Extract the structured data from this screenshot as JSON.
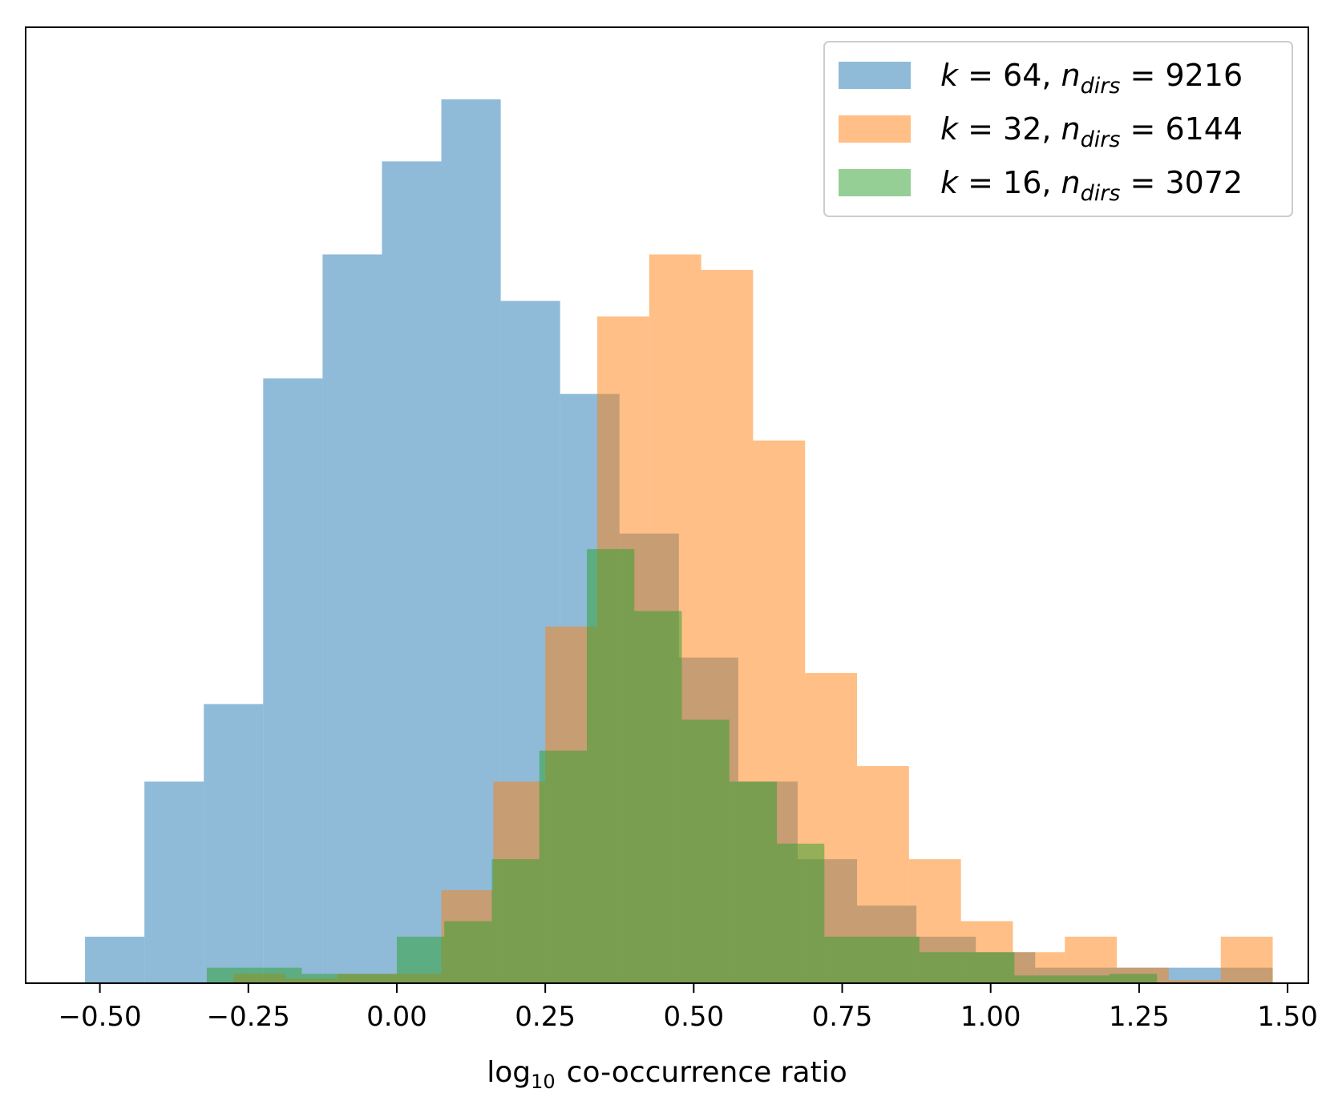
{
  "chart_data": {
    "type": "bar",
    "subtype": "overlaid-histogram",
    "xlabel_prefix": "log",
    "xlabel_sub": "10",
    "xlabel_suffix": "co-occurrence ratio",
    "xlim": [
      -0.625,
      1.535
    ],
    "ylim": [
      0,
      57
    ],
    "xticks": [
      -0.5,
      -0.25,
      0.0,
      0.25,
      0.5,
      0.75,
      1.0,
      1.25,
      1.5
    ],
    "xtick_labels": [
      "−0.50",
      "−0.25",
      "0.00",
      "0.25",
      "0.50",
      "0.75",
      "1.00",
      "1.25",
      "1.50"
    ],
    "y_tick_labels_shown": false,
    "grid": false,
    "legend_position": "top-right",
    "series": [
      {
        "k": "64",
        "n_dirs": "9216",
        "color": "#1f77b4",
        "alpha": 0.5,
        "edges": [
          -0.525,
          -0.425,
          -0.325,
          -0.225,
          -0.125,
          -0.025,
          0.075,
          0.175,
          0.275,
          0.375,
          0.475,
          0.575,
          0.675,
          0.775,
          0.875,
          0.975,
          1.075,
          1.175,
          1.275,
          1.375,
          1.475
        ],
        "counts": [
          3,
          13,
          18,
          39,
          47,
          53,
          57,
          44,
          38,
          29,
          21,
          13,
          8,
          5,
          3,
          2,
          1,
          1,
          1,
          1
        ]
      },
      {
        "k": "32",
        "n_dirs": "6144",
        "color": "#ff7f0e",
        "alpha": 0.5,
        "edges": [
          -0.275,
          -0.1875,
          -0.1,
          -0.0125,
          0.075,
          0.1625,
          0.25,
          0.3375,
          0.425,
          0.5125,
          0.6,
          0.6875,
          0.775,
          0.8625,
          0.95,
          1.0375,
          1.125,
          1.2125,
          1.3,
          1.3875,
          1.475
        ],
        "counts": [
          0.6,
          0.3,
          0.6,
          0.6,
          6,
          13,
          23,
          43,
          47,
          46,
          35,
          20,
          14,
          8,
          4,
          2,
          3,
          1,
          0.2,
          3
        ]
      },
      {
        "k": "16",
        "n_dirs": "3072",
        "color": "#2ca02c",
        "alpha": 0.5,
        "edges": [
          -0.32,
          -0.24,
          -0.16,
          -0.08,
          0.0,
          0.08,
          0.16,
          0.24,
          0.32,
          0.4,
          0.48,
          0.56,
          0.64,
          0.72,
          0.8,
          0.88,
          0.96,
          1.04,
          1.12,
          1.2,
          1.28
        ],
        "counts": [
          1,
          1,
          0.6,
          0.6,
          3,
          4,
          8,
          15,
          28,
          24,
          17,
          13,
          9,
          3,
          3,
          2,
          2,
          0.5,
          0.5,
          0.6
        ]
      }
    ]
  }
}
